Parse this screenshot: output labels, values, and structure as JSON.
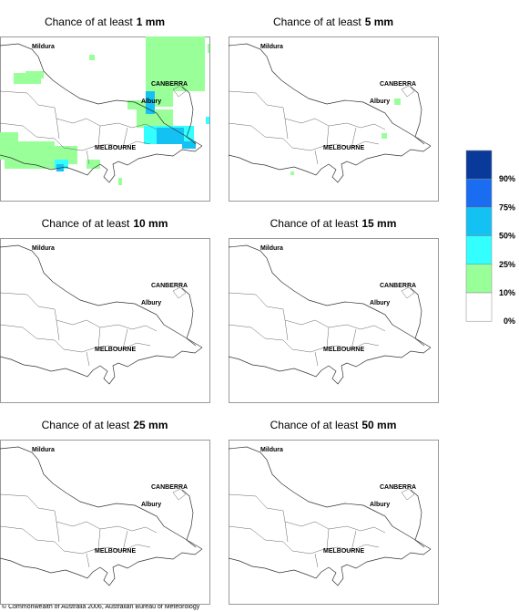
{
  "panels": [
    {
      "title_prefix": "Chance of at least",
      "title_amount": "1 mm"
    },
    {
      "title_prefix": "Chance of at least",
      "title_amount": "5 mm"
    },
    {
      "title_prefix": "Chance of at least",
      "title_amount": "10 mm"
    },
    {
      "title_prefix": "Chance of at least",
      "title_amount": "15 mm"
    },
    {
      "title_prefix": "Chance of at least",
      "title_amount": "25 mm"
    },
    {
      "title_prefix": "Chance of at least",
      "title_amount": "50 mm"
    }
  ],
  "cities": [
    "Mildura",
    "CANBERRA",
    "Albury",
    "MELBOURNE"
  ],
  "legend": {
    "colors": [
      "#0a3a99",
      "#1a6cf0",
      "#13c2f2",
      "#33ffff",
      "#99ff99",
      "#ffffff"
    ],
    "labels": [
      "90%",
      "75%",
      "50%",
      "25%",
      "10%",
      "0%"
    ]
  },
  "footer": "© Commonwealth of Australia 2006, Australian Bureau of Meteorology"
}
